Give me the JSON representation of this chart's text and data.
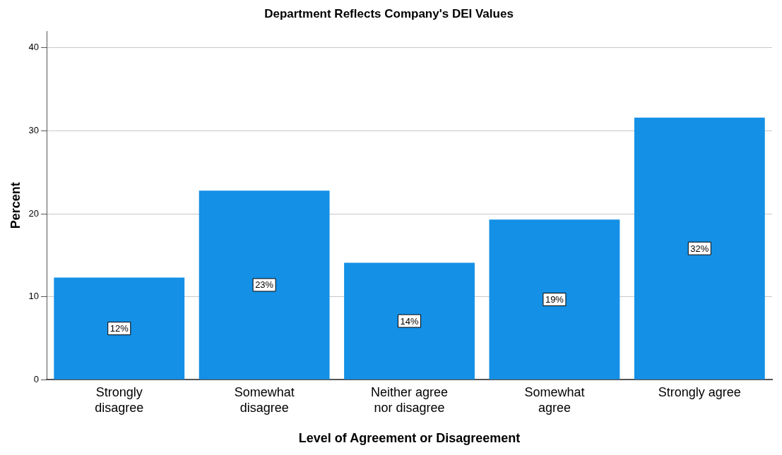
{
  "chart_data": {
    "type": "bar",
    "title": "Department Reflects Company's DEI Values",
    "xlabel": "Level of Agreement or Disagreement",
    "ylabel": "Percent",
    "categories": [
      "Strongly disagree",
      "Somewhat disagree",
      "Neither agree nor disagree",
      "Somewhat agree",
      "Strongly agree"
    ],
    "values": [
      12.3,
      22.8,
      14.1,
      19.3,
      31.6
    ],
    "value_labels": [
      "12%",
      "23%",
      "14%",
      "19%",
      "32%"
    ],
    "color": "#1490e6",
    "ylim": [
      0,
      42
    ],
    "yticks": [
      0,
      10,
      20,
      30,
      40
    ],
    "grid": "y"
  }
}
